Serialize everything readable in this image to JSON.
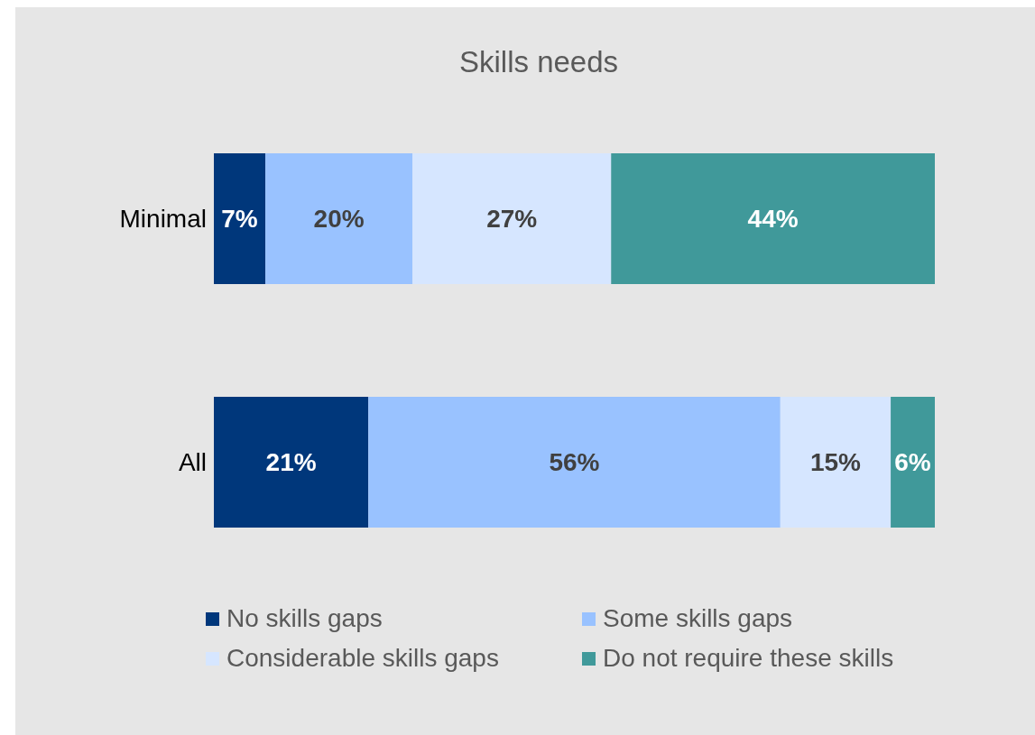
{
  "chart_data": {
    "type": "bar",
    "orientation": "horizontal",
    "stacked": true,
    "title": "Skills needs",
    "categories": [
      "Minimal",
      "All"
    ],
    "series": [
      {
        "name": "No skills gaps",
        "color": "#00377b",
        "values": [
          7,
          21
        ],
        "value_labels": [
          "7%",
          "21%"
        ]
      },
      {
        "name": "Some skills gaps",
        "color": "#99c2ff",
        "values": [
          20,
          56
        ],
        "value_labels": [
          "20%",
          "56%"
        ]
      },
      {
        "name": "Considerable skills gaps",
        "color": "#d6e6ff",
        "values": [
          27,
          15
        ],
        "value_labels": [
          "27%",
          "15%"
        ]
      },
      {
        "name": "Do not require these skills",
        "color": "#40999a",
        "values": [
          44,
          6
        ],
        "value_labels": [
          "44%",
          "6%"
        ]
      }
    ],
    "legend": "bottom"
  }
}
